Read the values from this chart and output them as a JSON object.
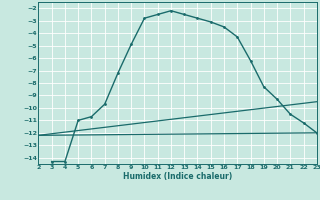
{
  "title": "",
  "xlabel": "Humidex (Indice chaleur)",
  "ylabel": "",
  "background_color": "#c8e8e0",
  "grid_color": "#ffffff",
  "line_color": "#1a6b6b",
  "xlim": [
    2,
    23
  ],
  "ylim": [
    -14.5,
    -1.5
  ],
  "xticks": [
    2,
    3,
    4,
    5,
    6,
    7,
    8,
    9,
    10,
    11,
    12,
    13,
    14,
    15,
    16,
    17,
    18,
    19,
    20,
    21,
    22,
    23
  ],
  "yticks": [
    -2,
    -3,
    -4,
    -5,
    -6,
    -7,
    -8,
    -9,
    -10,
    -11,
    -12,
    -13,
    -14
  ],
  "curve1_x": [
    3,
    4,
    5,
    6,
    7,
    8,
    9,
    10,
    11,
    12,
    13,
    14,
    15,
    16,
    17,
    18,
    19,
    20,
    21,
    22,
    23
  ],
  "curve1_y": [
    -14.3,
    -14.3,
    -11.0,
    -10.7,
    -9.7,
    -7.2,
    -4.9,
    -2.8,
    -2.5,
    -2.2,
    -2.5,
    -2.8,
    -3.1,
    -3.5,
    -4.3,
    -6.2,
    -8.3,
    -9.3,
    -10.5,
    -11.2,
    -12.0
  ],
  "line2_x": [
    2,
    23
  ],
  "line2_y": [
    -12.2,
    -12.0
  ],
  "line3_x": [
    2,
    23
  ],
  "line3_y": [
    -12.2,
    -9.5
  ]
}
